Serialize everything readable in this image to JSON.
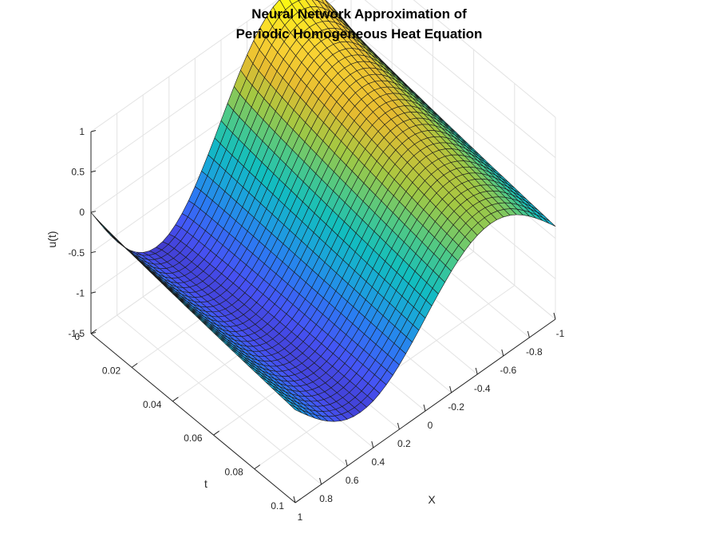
{
  "chart_data": {
    "type": "surface",
    "title": [
      "Neural Network Approximation of",
      "Periodic Homogeneous Heat Equation"
    ],
    "xlabel": "X",
    "ylabel": "t",
    "zlabel": "u(t)",
    "xlim": [
      -1,
      1
    ],
    "ylim": [
      0,
      0.1
    ],
    "zlim": [
      -1.5,
      1
    ],
    "x_ticks": [
      "1",
      "0.8",
      "0.6",
      "0.4",
      "0.2",
      "0",
      "-0.2",
      "-0.4",
      "-0.6",
      "-0.8",
      "-1"
    ],
    "t_ticks": [
      "0",
      "0.02",
      "0.04",
      "0.06",
      "0.08",
      "0.1"
    ],
    "z_ticks": [
      "1",
      "0.5",
      "0",
      "-0.5",
      "-1",
      "-1.5"
    ],
    "colormap": "parula",
    "colormap_stops": [
      "#3e26a8",
      "#4653f5",
      "#2b7cf3",
      "#1aa5da",
      "#12bebe",
      "#4dc988",
      "#a2c843",
      "#e6bb30",
      "#fbd532",
      "#f9fb0e"
    ],
    "grid": true,
    "grid_size": {
      "nx": 41,
      "nt": 36
    },
    "surface": {
      "description_of_samples": "u(t=0, x) ≈ -sin(pi x); u(t=0.1, x) ≈ -0.6 sin(pi x) - 0.35",
      "initial": {
        "x": [
          -1,
          -0.5,
          0,
          0.5,
          1
        ],
        "u": [
          0,
          1,
          0,
          -1,
          0
        ]
      },
      "final": {
        "x": [
          -1,
          -0.5,
          0,
          0.5,
          1
        ],
        "u": [
          -0.35,
          0.25,
          -0.35,
          -0.95,
          -0.35
        ]
      }
    }
  }
}
